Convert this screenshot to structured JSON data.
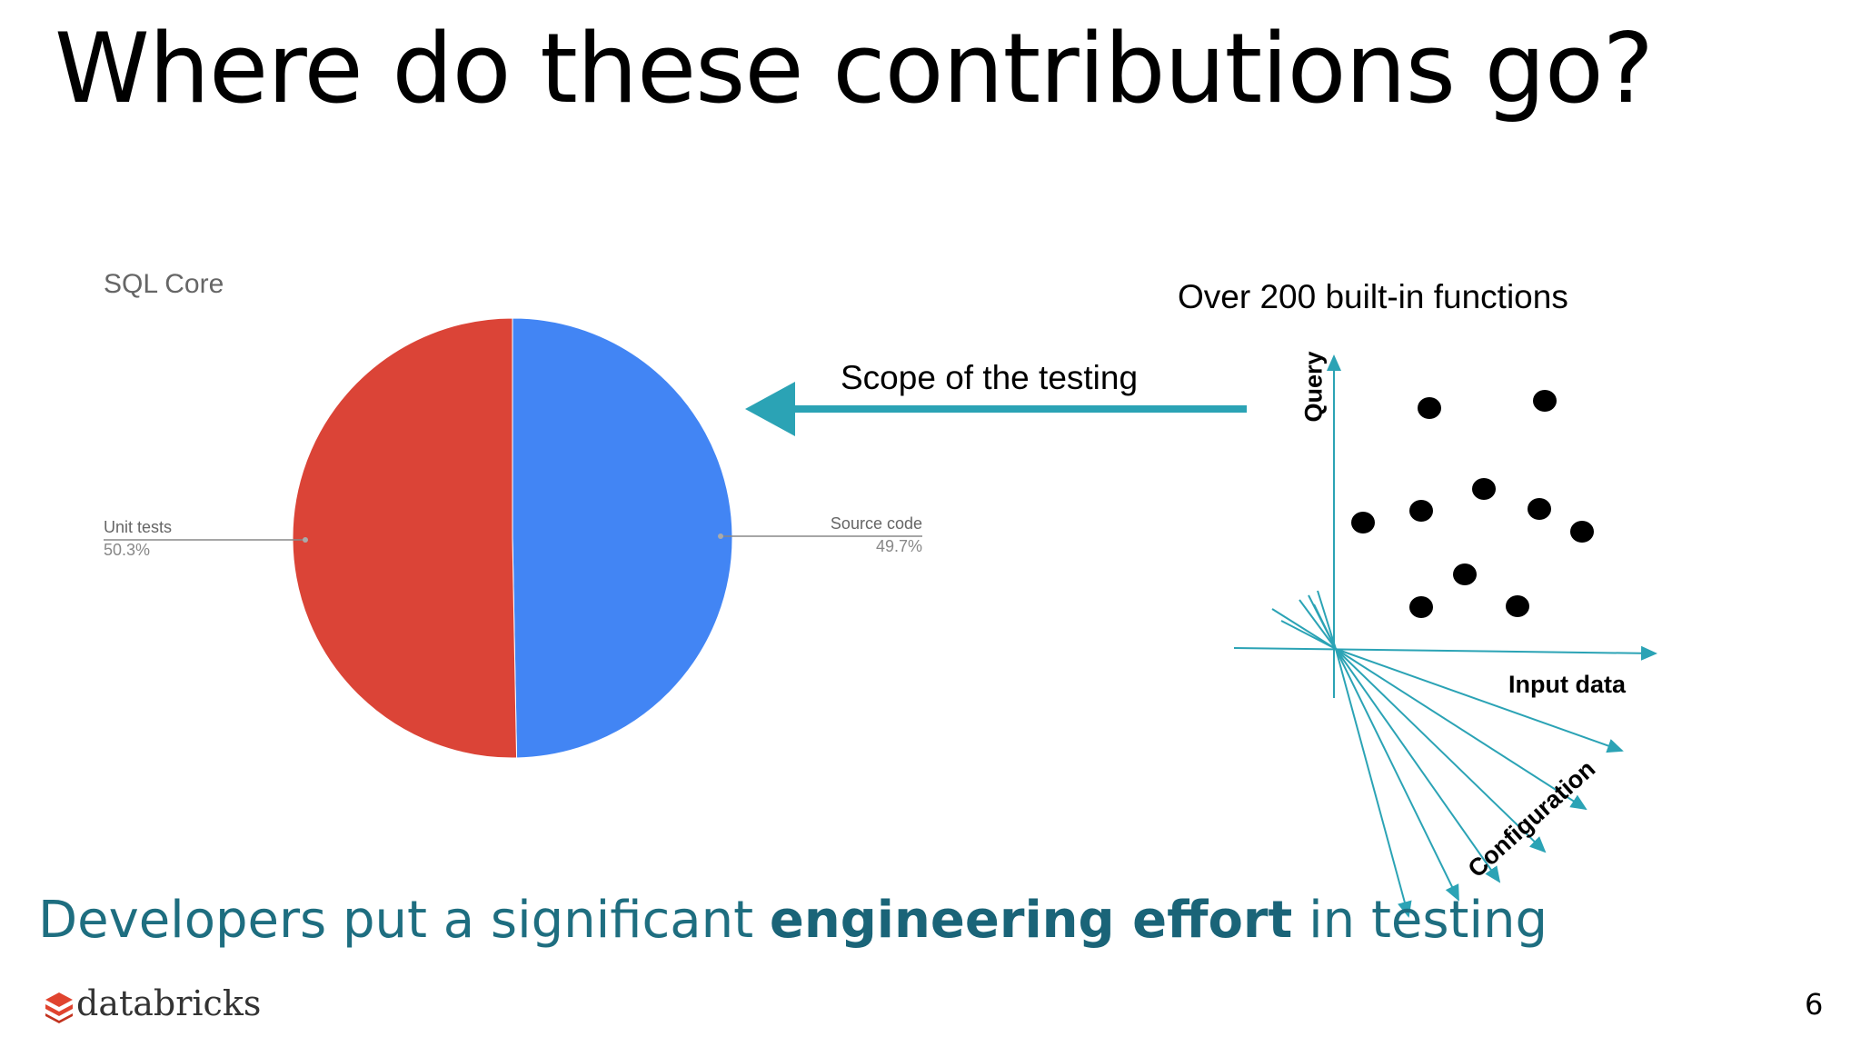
{
  "slide": {
    "title": "Where do these contributions go?",
    "tagline_prefix": "Developers put a significant ",
    "tagline_bold": "engineering effort",
    "tagline_suffix": " in testing",
    "page_number": "6",
    "logo_text": "databricks"
  },
  "chart_data": {
    "type": "pie",
    "title": "SQL Core",
    "slices": [
      {
        "label": "Source code",
        "value": 49.7,
        "display": "49.7%",
        "color": "#4285f4"
      },
      {
        "label": "Unit tests",
        "value": 50.3,
        "display": "50.3%",
        "color": "#db4437"
      }
    ],
    "legend": "none"
  },
  "diagram": {
    "functions_label": "Over 200 built-in functions",
    "scope_label": "Scope of the testing",
    "axis_query": "Query",
    "axis_input": "Input data",
    "axis_config": "Configuration",
    "accent_color": "#2ba3b5"
  },
  "colors": {
    "tagline": "#1e6e80",
    "arrow": "#2ba3b5",
    "logo": "#e0442f"
  }
}
